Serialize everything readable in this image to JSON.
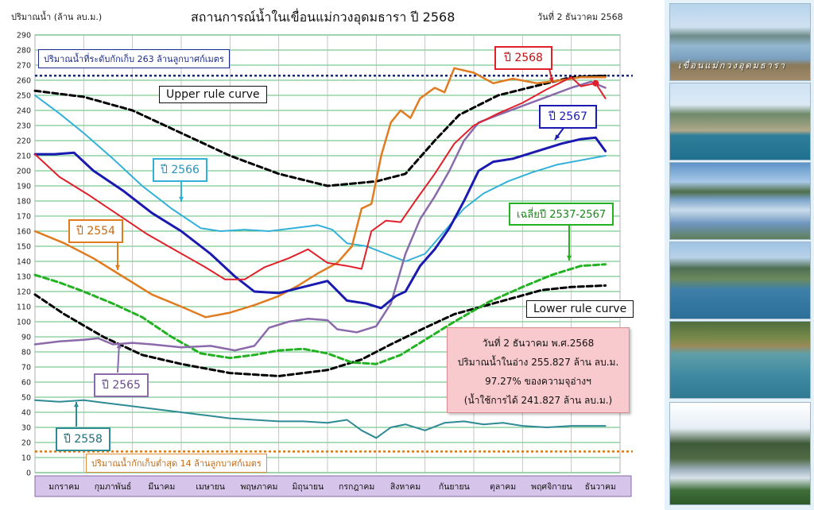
{
  "header": {
    "unit_label": "ปริมาณน้ำ (ล้าน ลบ.ม.)",
    "title": "สถานการณ์น้ำในเขื่อนแม่กวงอุดมธารา  ปี  2568",
    "date": "วันที่ 2 ธันวาคม 2568"
  },
  "reference_lines": {
    "max_storage": {
      "value": 263,
      "label": "ปริมาณน้ำที่ระดับกักเก็บ 263 ล้านลูกบาศก์เมตร"
    },
    "min_storage": {
      "value": 14,
      "label": "ปริมาณน้ำกักเก็บต่ำสุด 14 ล้านลูกบาศก์เมตร"
    }
  },
  "info_box": {
    "line1": "วันที่ 2 ธันวาคม พ.ศ.2568",
    "line2": "ปริมาณน้ำในอ่าง 255.827 ล้าน ลบ.ม.",
    "line3": "97.27% ของความจุอ่างฯ",
    "line4": "(น้ำใช้การได้ 241.827 ล้าน ลบ.ม.)"
  },
  "series_labels": {
    "upper": "Upper rule curve",
    "lower": "Lower rule curve",
    "y2568": "ปี 2568",
    "y2567": "ปี 2567",
    "y2566": "ปี 2566",
    "y2565": "ปี 2565",
    "y2558": "ปี 2558",
    "y2554": "ปี 2554",
    "avg": "เฉลี่ยปี 2537-2567"
  },
  "photos": {
    "caption1": "เขื่อนแม่กวงอุดมธารา"
  },
  "colors": {
    "upper": "#000000",
    "lower": "#000000",
    "y2568": "#e0202a",
    "y2567": "#1a1ab0",
    "y2566": "#33b0d8",
    "y2565": "#8a6aaa",
    "y2558": "#2e8a94",
    "y2554": "#e07b20",
    "avg": "#22b222",
    "grid": "#22a84a",
    "axis_band": "#d7c4ea"
  },
  "chart_data": {
    "type": "line",
    "xlabel": "",
    "ylabel": "ปริมาณน้ำ (ล้าน ลบ.ม.)",
    "ylim": [
      0,
      290
    ],
    "yticks": [
      0,
      10,
      20,
      30,
      40,
      50,
      60,
      70,
      80,
      90,
      100,
      110,
      120,
      130,
      140,
      150,
      160,
      170,
      180,
      190,
      200,
      210,
      220,
      230,
      240,
      250,
      260,
      270,
      280,
      290
    ],
    "xlim": [
      0,
      12
    ],
    "categories": [
      "มกราคม",
      "กุมภาพันธ์",
      "มีนาคม",
      "เมษายน",
      "พฤษภาคม",
      "มิถุนายน",
      "กรกฎาคม",
      "สิงหาคม",
      "กันยายน",
      "ตุลาคม",
      "พฤศจิกายน",
      "ธันวาคม"
    ],
    "grid": true,
    "series": [
      {
        "key": "upper",
        "name": "Upper rule curve",
        "style": "dashed",
        "width": 3,
        "points": [
          [
            0,
            253
          ],
          [
            1,
            249
          ],
          [
            2,
            240
          ],
          [
            3,
            225
          ],
          [
            4,
            210
          ],
          [
            5,
            198
          ],
          [
            6,
            190
          ],
          [
            7,
            193
          ],
          [
            7.6,
            198
          ],
          [
            8.2,
            220
          ],
          [
            8.7,
            237
          ],
          [
            9.5,
            250
          ],
          [
            10.5,
            258
          ],
          [
            11,
            262
          ],
          [
            11.7,
            263
          ]
        ]
      },
      {
        "key": "lower",
        "name": "Lower rule curve",
        "style": "dashed",
        "width": 3,
        "points": [
          [
            0,
            118
          ],
          [
            0.6,
            105
          ],
          [
            1.4,
            90
          ],
          [
            2.2,
            78
          ],
          [
            3,
            72
          ],
          [
            4,
            66
          ],
          [
            5,
            64
          ],
          [
            6,
            68
          ],
          [
            6.7,
            75
          ],
          [
            7.3,
            85
          ],
          [
            8,
            96
          ],
          [
            8.6,
            105
          ],
          [
            9.5,
            113
          ],
          [
            10.4,
            121
          ],
          [
            11,
            123
          ],
          [
            11.7,
            124
          ]
        ]
      },
      {
        "key": "avg",
        "name": "เฉลี่ยปี 2537-2567",
        "style": "dashed",
        "width": 3,
        "points": [
          [
            0,
            131
          ],
          [
            0.5,
            126
          ],
          [
            1,
            120
          ],
          [
            1.6,
            112
          ],
          [
            2.2,
            103
          ],
          [
            2.8,
            90
          ],
          [
            3.4,
            79
          ],
          [
            4,
            76
          ],
          [
            4.5,
            78
          ],
          [
            5,
            81
          ],
          [
            5.5,
            82
          ],
          [
            6,
            79
          ],
          [
            6.5,
            73
          ],
          [
            7,
            72
          ],
          [
            7.5,
            78
          ],
          [
            8,
            88
          ],
          [
            8.6,
            100
          ],
          [
            9.3,
            113
          ],
          [
            10,
            123
          ],
          [
            10.6,
            131
          ],
          [
            11.2,
            137
          ],
          [
            11.7,
            138
          ]
        ]
      },
      {
        "key": "y2566",
        "name": "ปี 2566",
        "style": "solid",
        "width": 2,
        "points": [
          [
            0,
            250
          ],
          [
            0.5,
            238
          ],
          [
            1,
            225
          ],
          [
            1.6,
            208
          ],
          [
            2.2,
            190
          ],
          [
            2.8,
            175
          ],
          [
            3.4,
            162
          ],
          [
            3.8,
            160
          ],
          [
            4.3,
            161
          ],
          [
            4.8,
            160
          ],
          [
            5.3,
            162
          ],
          [
            5.8,
            164
          ],
          [
            6.1,
            161
          ],
          [
            6.4,
            152
          ],
          [
            6.8,
            150
          ],
          [
            7.2,
            145
          ],
          [
            7.6,
            140
          ],
          [
            8,
            145
          ],
          [
            8.4,
            160
          ],
          [
            8.8,
            175
          ],
          [
            9.2,
            185
          ],
          [
            9.7,
            193
          ],
          [
            10.2,
            199
          ],
          [
            10.7,
            204
          ],
          [
            11.2,
            207
          ],
          [
            11.7,
            210
          ]
        ]
      },
      {
        "key": "y2554",
        "name": "ปี 2554",
        "style": "solid",
        "width": 2.5,
        "points": [
          [
            0,
            160
          ],
          [
            0.6,
            152
          ],
          [
            1.2,
            142
          ],
          [
            1.8,
            130
          ],
          [
            2.4,
            118
          ],
          [
            3,
            110
          ],
          [
            3.5,
            103
          ],
          [
            4,
            106
          ],
          [
            4.5,
            111
          ],
          [
            5,
            117
          ],
          [
            5.4,
            124
          ],
          [
            5.8,
            132
          ],
          [
            6.2,
            139
          ],
          [
            6.5,
            150
          ],
          [
            6.7,
            175
          ],
          [
            6.9,
            178
          ],
          [
            7.1,
            210
          ],
          [
            7.3,
            232
          ],
          [
            7.5,
            240
          ],
          [
            7.7,
            235
          ],
          [
            7.9,
            248
          ],
          [
            8.2,
            255
          ],
          [
            8.4,
            252
          ],
          [
            8.6,
            268
          ],
          [
            9,
            265
          ],
          [
            9.4,
            258
          ],
          [
            9.8,
            261
          ],
          [
            10.3,
            258
          ],
          [
            10.8,
            260
          ],
          [
            11.2,
            262
          ],
          [
            11.7,
            262
          ]
        ]
      },
      {
        "key": "y2565",
        "name": "ปี 2565",
        "style": "solid",
        "width": 2.5,
        "points": [
          [
            0,
            85
          ],
          [
            0.5,
            87
          ],
          [
            1,
            88
          ],
          [
            1.3,
            89
          ],
          [
            1.6,
            85
          ],
          [
            2,
            86
          ],
          [
            2.4,
            85
          ],
          [
            3,
            83
          ],
          [
            3.6,
            84
          ],
          [
            4.1,
            81
          ],
          [
            4.5,
            84
          ],
          [
            4.8,
            96
          ],
          [
            5.2,
            100
          ],
          [
            5.6,
            102
          ],
          [
            6,
            101
          ],
          [
            6.2,
            95
          ],
          [
            6.6,
            93
          ],
          [
            7,
            97
          ],
          [
            7.3,
            112
          ],
          [
            7.6,
            145
          ],
          [
            7.9,
            168
          ],
          [
            8.2,
            183
          ],
          [
            8.5,
            200
          ],
          [
            8.8,
            220
          ],
          [
            9.1,
            232
          ],
          [
            9.5,
            237
          ],
          [
            10,
            243
          ],
          [
            10.5,
            249
          ],
          [
            11,
            255
          ],
          [
            11.4,
            259
          ],
          [
            11.7,
            255
          ]
        ]
      },
      {
        "key": "y2567",
        "name": "ปี 2567",
        "style": "solid",
        "width": 3,
        "points": [
          [
            0,
            211
          ],
          [
            0.4,
            211
          ],
          [
            0.8,
            212
          ],
          [
            1.2,
            200
          ],
          [
            1.8,
            187
          ],
          [
            2.4,
            172
          ],
          [
            3,
            160
          ],
          [
            3.6,
            145
          ],
          [
            4.1,
            130
          ],
          [
            4.5,
            120
          ],
          [
            5,
            119
          ],
          [
            5.5,
            123
          ],
          [
            6,
            127
          ],
          [
            6.4,
            114
          ],
          [
            6.8,
            112
          ],
          [
            7.1,
            109
          ],
          [
            7.4,
            117
          ],
          [
            7.6,
            120
          ],
          [
            7.9,
            137
          ],
          [
            8.2,
            148
          ],
          [
            8.5,
            162
          ],
          [
            8.8,
            180
          ],
          [
            9.1,
            200
          ],
          [
            9.4,
            206
          ],
          [
            9.8,
            208
          ],
          [
            10.3,
            213
          ],
          [
            10.8,
            218
          ],
          [
            11.2,
            221
          ],
          [
            11.5,
            222
          ],
          [
            11.7,
            213
          ]
        ]
      },
      {
        "key": "y2568",
        "name": "ปี 2568",
        "style": "solid",
        "width": 2,
        "points": [
          [
            0,
            211
          ],
          [
            0.5,
            196
          ],
          [
            1.1,
            184
          ],
          [
            1.7,
            171
          ],
          [
            2.3,
            158
          ],
          [
            2.9,
            147
          ],
          [
            3.5,
            136
          ],
          [
            3.9,
            128
          ],
          [
            4.3,
            128
          ],
          [
            4.7,
            136
          ],
          [
            5.2,
            142
          ],
          [
            5.6,
            148
          ],
          [
            6,
            139
          ],
          [
            6.4,
            137
          ],
          [
            6.7,
            135
          ],
          [
            6.9,
            160
          ],
          [
            7.2,
            167
          ],
          [
            7.5,
            166
          ],
          [
            7.8,
            180
          ],
          [
            8.2,
            198
          ],
          [
            8.6,
            218
          ],
          [
            9,
            230
          ],
          [
            9.5,
            238
          ],
          [
            10,
            245
          ],
          [
            10.5,
            254
          ],
          [
            11,
            262
          ],
          [
            11.2,
            256
          ],
          [
            11.5,
            258
          ],
          [
            11.7,
            248
          ]
        ]
      },
      {
        "key": "y2558",
        "name": "ปี 2558",
        "style": "solid",
        "width": 2,
        "points": [
          [
            0,
            48
          ],
          [
            0.5,
            47
          ],
          [
            1,
            48
          ],
          [
            1.5,
            46
          ],
          [
            2,
            44
          ],
          [
            2.5,
            42
          ],
          [
            3,
            40
          ],
          [
            3.5,
            38
          ],
          [
            4,
            36
          ],
          [
            4.5,
            35
          ],
          [
            5,
            34
          ],
          [
            5.5,
            34
          ],
          [
            6,
            33
          ],
          [
            6.4,
            35
          ],
          [
            6.7,
            28
          ],
          [
            7,
            23
          ],
          [
            7.3,
            30
          ],
          [
            7.6,
            32
          ],
          [
            8,
            28
          ],
          [
            8.4,
            33
          ],
          [
            8.8,
            34
          ],
          [
            9.2,
            32
          ],
          [
            9.6,
            33
          ],
          [
            10,
            31
          ],
          [
            10.5,
            30
          ],
          [
            11,
            31
          ],
          [
            11.7,
            31
          ]
        ]
      }
    ]
  }
}
